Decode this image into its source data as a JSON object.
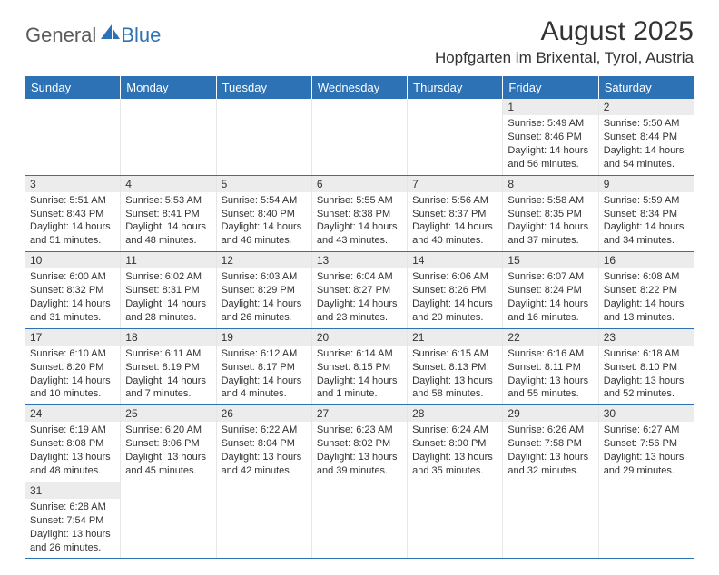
{
  "logo": {
    "text1": "General",
    "text2": "Blue"
  },
  "title": "August 2025",
  "location": "Hopfgarten im Brixental, Tyrol, Austria",
  "colors": {
    "header_bg": "#2d72b5",
    "header_text": "#ffffff",
    "daynum_bg": "#ececec",
    "week_divider": "#2d72b5",
    "cell_divider": "#e6e6e6",
    "body_text": "#333333",
    "page_bg": "#ffffff"
  },
  "weekdays": [
    "Sunday",
    "Monday",
    "Tuesday",
    "Wednesday",
    "Thursday",
    "Friday",
    "Saturday"
  ],
  "weeks": [
    [
      {
        "n": "",
        "sr": "",
        "ss": "",
        "dl": ""
      },
      {
        "n": "",
        "sr": "",
        "ss": "",
        "dl": ""
      },
      {
        "n": "",
        "sr": "",
        "ss": "",
        "dl": ""
      },
      {
        "n": "",
        "sr": "",
        "ss": "",
        "dl": ""
      },
      {
        "n": "",
        "sr": "",
        "ss": "",
        "dl": ""
      },
      {
        "n": "1",
        "sr": "Sunrise: 5:49 AM",
        "ss": "Sunset: 8:46 PM",
        "dl": "Daylight: 14 hours and 56 minutes."
      },
      {
        "n": "2",
        "sr": "Sunrise: 5:50 AM",
        "ss": "Sunset: 8:44 PM",
        "dl": "Daylight: 14 hours and 54 minutes."
      }
    ],
    [
      {
        "n": "3",
        "sr": "Sunrise: 5:51 AM",
        "ss": "Sunset: 8:43 PM",
        "dl": "Daylight: 14 hours and 51 minutes."
      },
      {
        "n": "4",
        "sr": "Sunrise: 5:53 AM",
        "ss": "Sunset: 8:41 PM",
        "dl": "Daylight: 14 hours and 48 minutes."
      },
      {
        "n": "5",
        "sr": "Sunrise: 5:54 AM",
        "ss": "Sunset: 8:40 PM",
        "dl": "Daylight: 14 hours and 46 minutes."
      },
      {
        "n": "6",
        "sr": "Sunrise: 5:55 AM",
        "ss": "Sunset: 8:38 PM",
        "dl": "Daylight: 14 hours and 43 minutes."
      },
      {
        "n": "7",
        "sr": "Sunrise: 5:56 AM",
        "ss": "Sunset: 8:37 PM",
        "dl": "Daylight: 14 hours and 40 minutes."
      },
      {
        "n": "8",
        "sr": "Sunrise: 5:58 AM",
        "ss": "Sunset: 8:35 PM",
        "dl": "Daylight: 14 hours and 37 minutes."
      },
      {
        "n": "9",
        "sr": "Sunrise: 5:59 AM",
        "ss": "Sunset: 8:34 PM",
        "dl": "Daylight: 14 hours and 34 minutes."
      }
    ],
    [
      {
        "n": "10",
        "sr": "Sunrise: 6:00 AM",
        "ss": "Sunset: 8:32 PM",
        "dl": "Daylight: 14 hours and 31 minutes."
      },
      {
        "n": "11",
        "sr": "Sunrise: 6:02 AM",
        "ss": "Sunset: 8:31 PM",
        "dl": "Daylight: 14 hours and 28 minutes."
      },
      {
        "n": "12",
        "sr": "Sunrise: 6:03 AM",
        "ss": "Sunset: 8:29 PM",
        "dl": "Daylight: 14 hours and 26 minutes."
      },
      {
        "n": "13",
        "sr": "Sunrise: 6:04 AM",
        "ss": "Sunset: 8:27 PM",
        "dl": "Daylight: 14 hours and 23 minutes."
      },
      {
        "n": "14",
        "sr": "Sunrise: 6:06 AM",
        "ss": "Sunset: 8:26 PM",
        "dl": "Daylight: 14 hours and 20 minutes."
      },
      {
        "n": "15",
        "sr": "Sunrise: 6:07 AM",
        "ss": "Sunset: 8:24 PM",
        "dl": "Daylight: 14 hours and 16 minutes."
      },
      {
        "n": "16",
        "sr": "Sunrise: 6:08 AM",
        "ss": "Sunset: 8:22 PM",
        "dl": "Daylight: 14 hours and 13 minutes."
      }
    ],
    [
      {
        "n": "17",
        "sr": "Sunrise: 6:10 AM",
        "ss": "Sunset: 8:20 PM",
        "dl": "Daylight: 14 hours and 10 minutes."
      },
      {
        "n": "18",
        "sr": "Sunrise: 6:11 AM",
        "ss": "Sunset: 8:19 PM",
        "dl": "Daylight: 14 hours and 7 minutes."
      },
      {
        "n": "19",
        "sr": "Sunrise: 6:12 AM",
        "ss": "Sunset: 8:17 PM",
        "dl": "Daylight: 14 hours and 4 minutes."
      },
      {
        "n": "20",
        "sr": "Sunrise: 6:14 AM",
        "ss": "Sunset: 8:15 PM",
        "dl": "Daylight: 14 hours and 1 minute."
      },
      {
        "n": "21",
        "sr": "Sunrise: 6:15 AM",
        "ss": "Sunset: 8:13 PM",
        "dl": "Daylight: 13 hours and 58 minutes."
      },
      {
        "n": "22",
        "sr": "Sunrise: 6:16 AM",
        "ss": "Sunset: 8:11 PM",
        "dl": "Daylight: 13 hours and 55 minutes."
      },
      {
        "n": "23",
        "sr": "Sunrise: 6:18 AM",
        "ss": "Sunset: 8:10 PM",
        "dl": "Daylight: 13 hours and 52 minutes."
      }
    ],
    [
      {
        "n": "24",
        "sr": "Sunrise: 6:19 AM",
        "ss": "Sunset: 8:08 PM",
        "dl": "Daylight: 13 hours and 48 minutes."
      },
      {
        "n": "25",
        "sr": "Sunrise: 6:20 AM",
        "ss": "Sunset: 8:06 PM",
        "dl": "Daylight: 13 hours and 45 minutes."
      },
      {
        "n": "26",
        "sr": "Sunrise: 6:22 AM",
        "ss": "Sunset: 8:04 PM",
        "dl": "Daylight: 13 hours and 42 minutes."
      },
      {
        "n": "27",
        "sr": "Sunrise: 6:23 AM",
        "ss": "Sunset: 8:02 PM",
        "dl": "Daylight: 13 hours and 39 minutes."
      },
      {
        "n": "28",
        "sr": "Sunrise: 6:24 AM",
        "ss": "Sunset: 8:00 PM",
        "dl": "Daylight: 13 hours and 35 minutes."
      },
      {
        "n": "29",
        "sr": "Sunrise: 6:26 AM",
        "ss": "Sunset: 7:58 PM",
        "dl": "Daylight: 13 hours and 32 minutes."
      },
      {
        "n": "30",
        "sr": "Sunrise: 6:27 AM",
        "ss": "Sunset: 7:56 PM",
        "dl": "Daylight: 13 hours and 29 minutes."
      }
    ],
    [
      {
        "n": "31",
        "sr": "Sunrise: 6:28 AM",
        "ss": "Sunset: 7:54 PM",
        "dl": "Daylight: 13 hours and 26 minutes."
      },
      {
        "n": "",
        "sr": "",
        "ss": "",
        "dl": ""
      },
      {
        "n": "",
        "sr": "",
        "ss": "",
        "dl": ""
      },
      {
        "n": "",
        "sr": "",
        "ss": "",
        "dl": ""
      },
      {
        "n": "",
        "sr": "",
        "ss": "",
        "dl": ""
      },
      {
        "n": "",
        "sr": "",
        "ss": "",
        "dl": ""
      },
      {
        "n": "",
        "sr": "",
        "ss": "",
        "dl": ""
      }
    ]
  ]
}
